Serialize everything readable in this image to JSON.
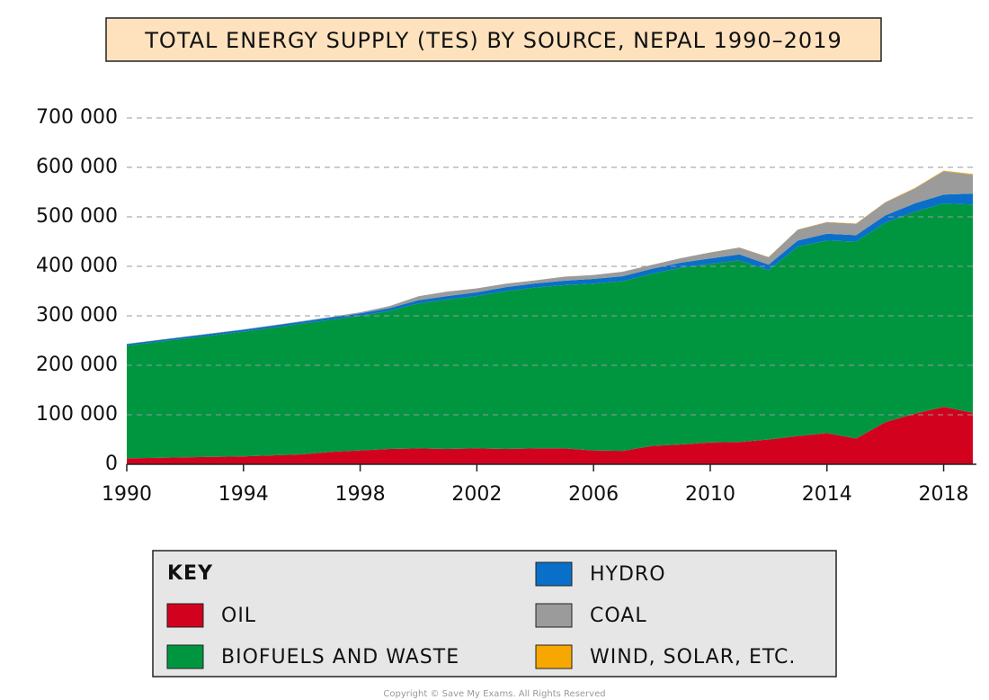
{
  "chart_data": {
    "type": "stacked-area",
    "title": "TOTAL ENERGY SUPPLY (TES) BY SOURCE, NEPAL 1990–2019",
    "legend_title": "KEY",
    "footer": "Copyright © Save My Exams. All Rights Reserved",
    "x": [
      1990,
      1991,
      1992,
      1993,
      1994,
      1995,
      1996,
      1997,
      1998,
      1999,
      2000,
      2001,
      2002,
      2003,
      2004,
      2005,
      2006,
      2007,
      2008,
      2009,
      2010,
      2011,
      2012,
      2013,
      2014,
      2015,
      2016,
      2017,
      2018,
      2019
    ],
    "xlim": [
      1990,
      2019
    ],
    "xticks": [
      1990,
      1994,
      1998,
      2002,
      2006,
      2010,
      2014,
      2018
    ],
    "ylim": [
      0,
      700000
    ],
    "yticks": [
      0,
      {
        "value": 100000,
        "label": "100 000"
      },
      {
        "value": 200000,
        "label": "200 000"
      },
      {
        "value": 300000,
        "label": "300 000"
      },
      {
        "value": 400000,
        "label": "400 000"
      },
      {
        "value": 500000,
        "label": "500 000"
      },
      {
        "value": 600000,
        "label": "600 000"
      },
      {
        "value": 700000,
        "label": "700 000"
      }
    ],
    "grid": true,
    "series": [
      {
        "name": "OIL",
        "color": "#d2021e",
        "values": [
          12000,
          13000,
          14000,
          15000,
          16000,
          18000,
          20000,
          25000,
          28000,
          31000,
          32000,
          31000,
          32000,
          31000,
          32000,
          32000,
          28000,
          27000,
          37000,
          40000,
          44000,
          45000,
          50000,
          57000,
          63000,
          52000,
          85000,
          102000,
          116000,
          104000
        ]
      },
      {
        "name": "BIOFUELS AND WASTE",
        "color": "#009640",
        "values": [
          228000,
          234000,
          240000,
          246000,
          252000,
          258000,
          264000,
          267000,
          272000,
          279000,
          293000,
          302000,
          308000,
          319000,
          325000,
          330000,
          337000,
          343000,
          348000,
          357000,
          361000,
          367000,
          342000,
          383000,
          389000,
          398000,
          403000,
          408000,
          411000,
          421000
        ]
      },
      {
        "name": "HYDRO",
        "color": "#0a6fc9",
        "values": [
          3000,
          3200,
          3400,
          3600,
          3800,
          4000,
          4200,
          4500,
          5000,
          5500,
          6500,
          7000,
          7500,
          8000,
          8500,
          9000,
          9500,
          10000,
          10000,
          10500,
          11000,
          12000,
          11500,
          12000,
          14000,
          13000,
          15000,
          17000,
          18000,
          22000
        ]
      },
      {
        "name": "COAL",
        "color": "#9b9b9b",
        "values": [
          500,
          600,
          700,
          800,
          900,
          1000,
          1200,
          1500,
          2000,
          4000,
          8000,
          9000,
          8000,
          7000,
          6000,
          8000,
          8000,
          9000,
          8000,
          9000,
          12000,
          14000,
          15000,
          22000,
          23000,
          23000,
          26000,
          30000,
          47000,
          38000
        ]
      },
      {
        "name": "WIND, SOLAR, ETC.",
        "color": "#f7a800",
        "values": [
          0,
          0,
          0,
          0,
          0,
          0,
          0,
          0,
          0,
          0,
          0,
          0,
          0,
          0,
          0,
          0,
          0,
          0,
          0,
          0,
          100,
          200,
          300,
          400,
          500,
          600,
          800,
          1000,
          1300,
          1500
        ]
      }
    ]
  }
}
